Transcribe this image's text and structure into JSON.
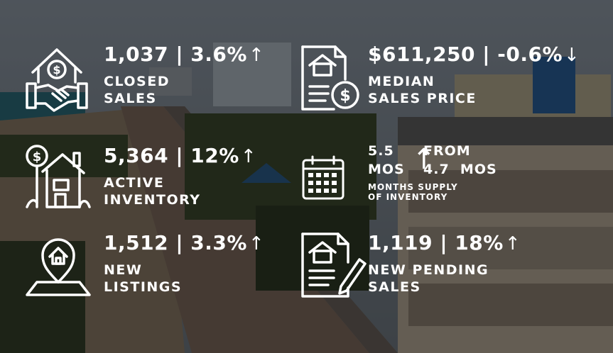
{
  "stats": {
    "closed": {
      "value": "1,037 | 3.6%",
      "arrow": "↑",
      "label1": "CLOSED",
      "label2": "SALES",
      "icon": "handshake-house-icon"
    },
    "median": {
      "value": "$611,250 | -0.6%",
      "arrow": "↓",
      "label1": "MEDIAN",
      "label2": "SALES PRICE",
      "icon": "document-dollar-icon"
    },
    "inventory": {
      "value": "5,364 | 12%",
      "arrow": "↑",
      "label1": "ACTIVE",
      "label2": "INVENTORY",
      "icon": "house-dollar-tree-icon"
    },
    "months": {
      "value": "5.5",
      "unit": "MOS",
      "arrow": "↑",
      "from_label": "FROM",
      "from_value": "4.7",
      "from_unit": "MOS",
      "label1": "MONTHS SUPPLY",
      "label2": "OF INVENTORY",
      "icon": "calendar-icon"
    },
    "listings": {
      "value": "1,512 | 3.3%",
      "arrow": "↑",
      "label1": "NEW",
      "label2": "LISTINGS",
      "icon": "map-pin-house-icon"
    },
    "pending": {
      "value": "1,119 | 18%",
      "arrow": "↑",
      "label1": "NEW PENDING",
      "label2": "SALES",
      "icon": "contract-pen-icon"
    }
  }
}
